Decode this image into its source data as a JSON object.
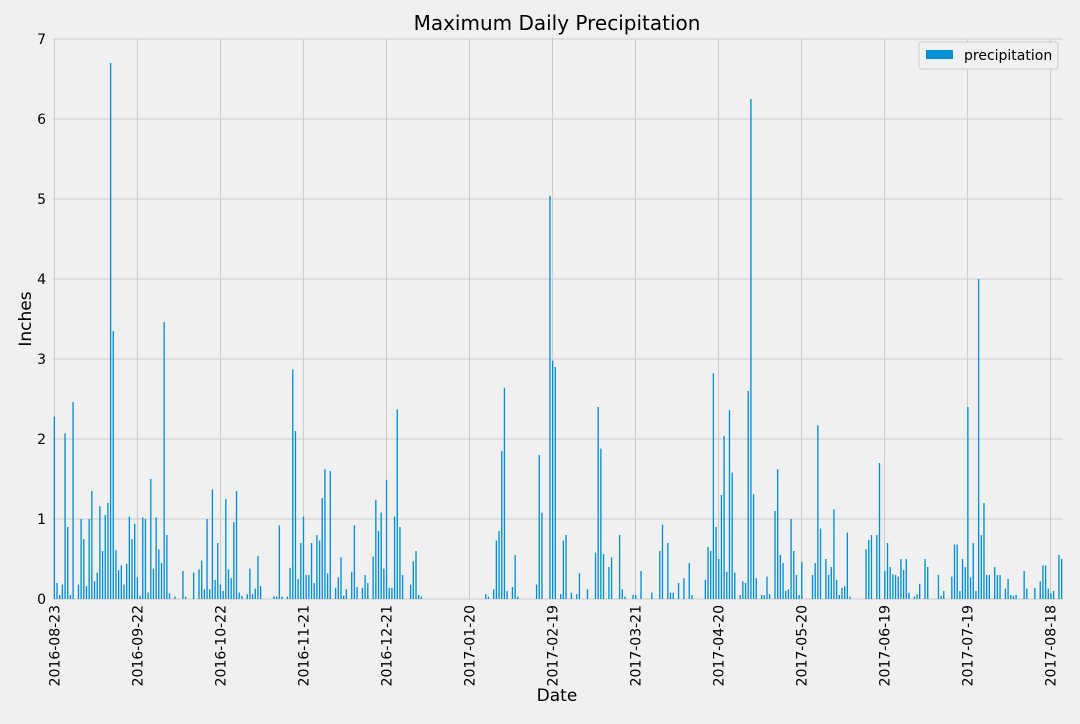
{
  "chart_data": {
    "type": "bar",
    "title": "Maximum Daily Precipitation",
    "xlabel": "Date",
    "ylabel": "Inches",
    "ylim": [
      0,
      7
    ],
    "yticks": [
      0,
      1,
      2,
      3,
      4,
      5,
      6,
      7
    ],
    "grid": true,
    "legend_position": "top-right",
    "colors": {
      "bar": "#008fd5",
      "background": "#f0f0f0",
      "grid": "#cbcbcb"
    },
    "x_start": "2016-08-23",
    "x_end": "2017-08-23",
    "xtick_labels": [
      "2016-08-23",
      "2016-09-22",
      "2016-10-22",
      "2016-11-21",
      "2016-12-21",
      "2017-01-20",
      "2017-02-19",
      "2017-03-21",
      "2017-04-20",
      "2017-05-20",
      "2017-06-19",
      "2017-07-19",
      "2017-08-18"
    ],
    "series": [
      {
        "name": "precipitation",
        "color": "#008fd5",
        "values": [
          2.28,
          0.2,
          0.05,
          0.18,
          2.07,
          0.9,
          0.05,
          2.46,
          0.0,
          0.18,
          1.0,
          0.75,
          0.16,
          1.0,
          1.35,
          0.22,
          0.33,
          1.16,
          0.6,
          1.05,
          1.2,
          6.7,
          3.35,
          0.61,
          0.36,
          0.42,
          0.18,
          0.44,
          1.03,
          0.75,
          0.94,
          0.27,
          0.04,
          1.02,
          1.0,
          0.08,
          1.5,
          0.38,
          1.02,
          0.62,
          0.45,
          3.46,
          0.8,
          0.07,
          0.0,
          0.03,
          0.0,
          0.0,
          0.35,
          0.03,
          0.0,
          0.0,
          0.33,
          0.0,
          0.37,
          0.48,
          0.12,
          1.0,
          0.12,
          1.37,
          0.24,
          0.7,
          0.18,
          0.1,
          1.25,
          0.37,
          0.26,
          0.96,
          1.35,
          0.08,
          0.04,
          0.0,
          0.06,
          0.38,
          0.06,
          0.13,
          0.54,
          0.16,
          0.0,
          0.0,
          0.0,
          0.0,
          0.03,
          0.03,
          0.92,
          0.03,
          0.0,
          0.03,
          0.39,
          2.87,
          2.1,
          0.25,
          0.7,
          1.03,
          0.3,
          0.3,
          0.7,
          0.2,
          0.8,
          0.73,
          1.26,
          1.62,
          0.32,
          1.6,
          0.0,
          0.14,
          0.27,
          0.52,
          0.04,
          0.12,
          0.0,
          0.34,
          0.92,
          0.15,
          0.0,
          0.14,
          0.3,
          0.2,
          0.0,
          0.53,
          1.24,
          0.85,
          1.08,
          0.38,
          1.49,
          0.14,
          0.14,
          1.03,
          2.37,
          0.9,
          0.3,
          0.0,
          0.0,
          0.18,
          0.47,
          0.6,
          0.05,
          0.03,
          0.0,
          0.0,
          0.0,
          0.0,
          0.0,
          0.0,
          0.0,
          0.0,
          0.0,
          0.0,
          0.0,
          0.0,
          0.0,
          0.0,
          0.0,
          0.0,
          0.0,
          0.0,
          0.0,
          0.0,
          0.0,
          0.0,
          0.0,
          0.06,
          0.03,
          0.0,
          0.12,
          0.73,
          0.85,
          1.85,
          2.64,
          0.1,
          0.0,
          0.15,
          0.55,
          0.03,
          0.0,
          0.0,
          0.0,
          0.0,
          0.0,
          0.0,
          0.18,
          1.8,
          1.08,
          0.0,
          0.0,
          5.04,
          2.98,
          2.9,
          0.0,
          0.06,
          0.73,
          0.8,
          0.0,
          0.08,
          0.0,
          0.06,
          0.32,
          0.0,
          0.0,
          0.12,
          0.0,
          0.0,
          0.58,
          2.4,
          1.88,
          0.56,
          0.0,
          0.4,
          0.52,
          0.0,
          0.0,
          0.8,
          0.12,
          0.03,
          0.0,
          0.0,
          0.05,
          0.05,
          0.0,
          0.35,
          0.0,
          0.0,
          0.0,
          0.08,
          0.0,
          0.0,
          0.6,
          0.93,
          0.0,
          0.7,
          0.08,
          0.08,
          0.0,
          0.2,
          0.0,
          0.26,
          0.0,
          0.45,
          0.05,
          0.0,
          0.0,
          0.0,
          0.0,
          0.24,
          0.65,
          0.6,
          2.82,
          0.9,
          0.5,
          1.3,
          2.04,
          0.34,
          2.36,
          1.58,
          0.33,
          0.0,
          0.05,
          0.22,
          0.2,
          2.6,
          6.25,
          1.31,
          0.26,
          0.0,
          0.05,
          0.05,
          0.28,
          0.06,
          0.0,
          1.1,
          1.62,
          0.55,
          0.45,
          0.1,
          0.12,
          1.0,
          0.6,
          0.3,
          0.05,
          0.46,
          0.0,
          0.0,
          0.0,
          0.3,
          0.45,
          2.17,
          0.88,
          0.0,
          0.5,
          0.3,
          0.4,
          1.12,
          0.24,
          0.05,
          0.14,
          0.16,
          0.83,
          0.03,
          0.0,
          0.0,
          0.0,
          0.0,
          0.0,
          0.62,
          0.74,
          0.8,
          0.0,
          0.8,
          1.7,
          0.0,
          0.35,
          0.7,
          0.4,
          0.31,
          0.3,
          0.28,
          0.5,
          0.36,
          0.5,
          0.08,
          0.0,
          0.03,
          0.06,
          0.19,
          0.0,
          0.5,
          0.4,
          0.0,
          0.0,
          0.0,
          0.3,
          0.04,
          0.1,
          0.0,
          0.0,
          0.28,
          0.68,
          0.68,
          0.1,
          0.5,
          0.4,
          2.4,
          0.27,
          0.7,
          0.1,
          4.0,
          0.8,
          1.2,
          0.3,
          0.3,
          0.0,
          0.4,
          0.3,
          0.3,
          0.0,
          0.13,
          0.25,
          0.05,
          0.04,
          0.05,
          0.0,
          0.0,
          0.35,
          0.13,
          0.0,
          0.0,
          0.14,
          0.0,
          0.22,
          0.42,
          0.42,
          0.13,
          0.07,
          0.1,
          0.0,
          0.55,
          0.5
        ]
      }
    ]
  }
}
